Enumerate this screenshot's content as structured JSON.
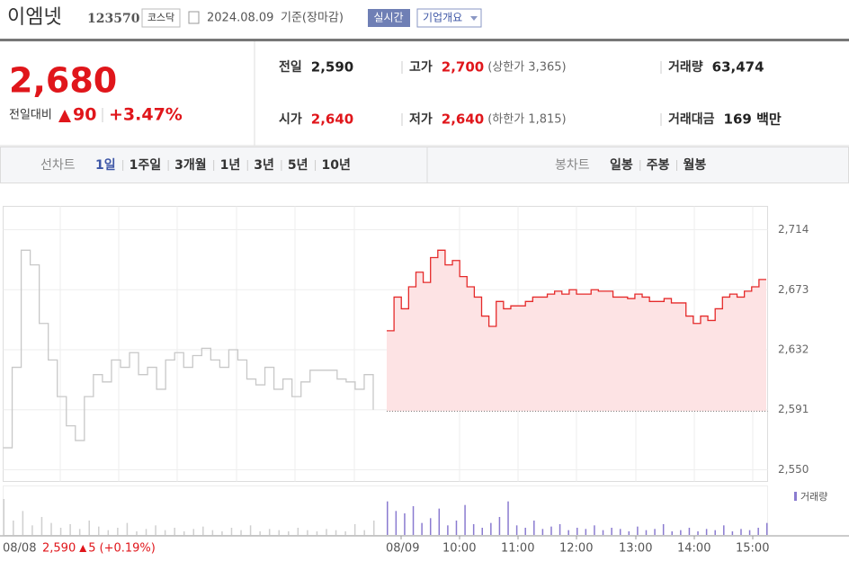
{
  "header": {
    "name": "이엠넷",
    "code": "123570",
    "market": "코스닥",
    "date": "2024.08.09",
    "date_note": "기준(장마감)",
    "realtime": "실시간",
    "company": "기업개요"
  },
  "price": {
    "current": "2,680",
    "change_label": "전일대비",
    "change": "90",
    "rate": "+3.47%"
  },
  "stats": [
    [
      {
        "label": "전일",
        "value": "2,590"
      },
      {
        "label": "고가",
        "value": "2,700",
        "note": "(상한가 3,365)"
      },
      {
        "label": "거래량",
        "value": "63,474"
      }
    ],
    [
      {
        "label": "시가",
        "value": "2,640"
      },
      {
        "label": "저가",
        "value": "2,640",
        "note": "(하한가 1,815)"
      },
      {
        "label": "거래대금",
        "value": "169 백만"
      }
    ]
  ],
  "tabs": {
    "line_label": "선차트",
    "line_items": [
      "1일",
      "1주일",
      "3개월",
      "1년",
      "3년",
      "5년",
      "10년"
    ],
    "candle_label": "봉차트",
    "candle_items": [
      "일봉",
      "주봉",
      "월봉"
    ]
  },
  "chart_data": {
    "type": "line",
    "ylim": [
      2542,
      2730
    ],
    "yticks": [
      {
        "value": 2714,
        "label": "2,714"
      },
      {
        "value": 2673,
        "label": "2,673"
      },
      {
        "value": 2632,
        "label": "2,632"
      },
      {
        "value": 2591,
        "label": "2,591"
      },
      {
        "value": 2550,
        "label": "2,550"
      }
    ],
    "baseline": 2590,
    "xlabels": [
      "08/08",
      "08/09",
      "10:00",
      "11:00",
      "12:00",
      "13:00",
      "14:00",
      "15:00"
    ],
    "series": [
      {
        "color": "#c8c8c8",
        "values": [
          2565,
          2620,
          2700,
          2690,
          2650,
          2625,
          2600,
          2580,
          2570,
          2600,
          2615,
          2610,
          2625,
          2620,
          2630,
          2615,
          2620,
          2605,
          2625,
          2630,
          2620,
          2628,
          2633,
          2625,
          2620,
          2632,
          2625,
          2612,
          2608,
          2620,
          2605,
          2612,
          2600,
          2610,
          2618,
          2618,
          2618,
          2612,
          2610,
          2605,
          2615,
          2591
        ]
      },
      {
        "color": "#e52a2a",
        "values": [
          2645,
          2668,
          2660,
          2675,
          2685,
          2678,
          2695,
          2700,
          2690,
          2693,
          2682,
          2675,
          2668,
          2655,
          2648,
          2665,
          2660,
          2662,
          2662,
          2665,
          2668,
          2668,
          2670,
          2672,
          2670,
          2673,
          2670,
          2670,
          2673,
          2672,
          2672,
          2668,
          2668,
          2667,
          2670,
          2668,
          2665,
          2665,
          2667,
          2664,
          2664,
          2655,
          2650,
          2655,
          2652,
          2660,
          2668,
          2670,
          2668,
          2672,
          2675,
          2680,
          2680
        ]
      }
    ],
    "volume": {
      "label": "거래량",
      "color": "#8a7bd0",
      "prev_color": "#cfcfcf",
      "prev_values": [
        30,
        12,
        20,
        8,
        15,
        10,
        6,
        9,
        5,
        12,
        7,
        4,
        6,
        10,
        3,
        5,
        8,
        4,
        6,
        3,
        5,
        7,
        4,
        3,
        6,
        4,
        8,
        3,
        5,
        4,
        3,
        6,
        4,
        3,
        5,
        4,
        3,
        9,
        4,
        12
      ],
      "values": [
        28,
        20,
        18,
        24,
        10,
        14,
        22,
        8,
        12,
        25,
        9,
        6,
        10,
        15,
        28,
        8,
        6,
        12,
        5,
        7,
        9,
        4,
        6,
        5,
        8,
        4,
        6,
        5,
        3,
        7,
        4,
        5,
        9,
        3,
        4,
        6,
        3,
        5,
        4,
        8,
        3,
        5,
        4,
        6,
        10
      ]
    },
    "footer": {
      "date": "08/08",
      "price": "2,590",
      "change": "5",
      "rate": "(+0.19%)"
    }
  }
}
